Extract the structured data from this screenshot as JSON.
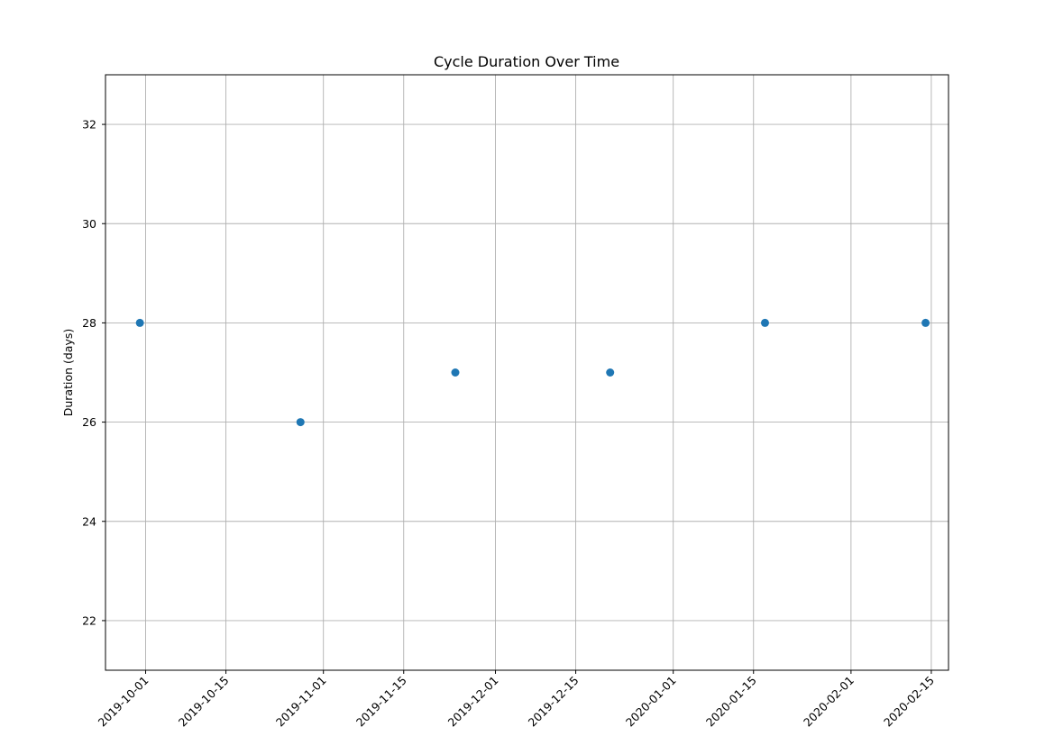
{
  "chart_data": {
    "type": "scatter",
    "title": "Cycle Duration Over Time",
    "xlabel": "",
    "ylabel": "Duration (days)",
    "x_axis_type": "date",
    "xlim": [
      "2019-09-24",
      "2020-02-18"
    ],
    "ylim": [
      21,
      33
    ],
    "x_ticks": [
      "2019-10-01",
      "2019-10-15",
      "2019-11-01",
      "2019-11-15",
      "2019-12-01",
      "2019-12-15",
      "2020-01-01",
      "2020-01-15",
      "2020-02-01",
      "2020-02-15"
    ],
    "y_ticks": [
      22,
      24,
      26,
      28,
      30,
      32
    ],
    "x_tick_rotation": 45,
    "grid": true,
    "legend": "none",
    "colors": {
      "marker": "#1f77b4",
      "grid": "#b0b0b0",
      "axes": "#000000",
      "background": "#ffffff"
    },
    "points": [
      {
        "x": "2019-09-30",
        "y": 28
      },
      {
        "x": "2019-10-28",
        "y": 26
      },
      {
        "x": "2019-11-24",
        "y": 27
      },
      {
        "x": "2019-12-21",
        "y": 27
      },
      {
        "x": "2020-01-17",
        "y": 28
      },
      {
        "x": "2020-02-14",
        "y": 28
      }
    ]
  }
}
